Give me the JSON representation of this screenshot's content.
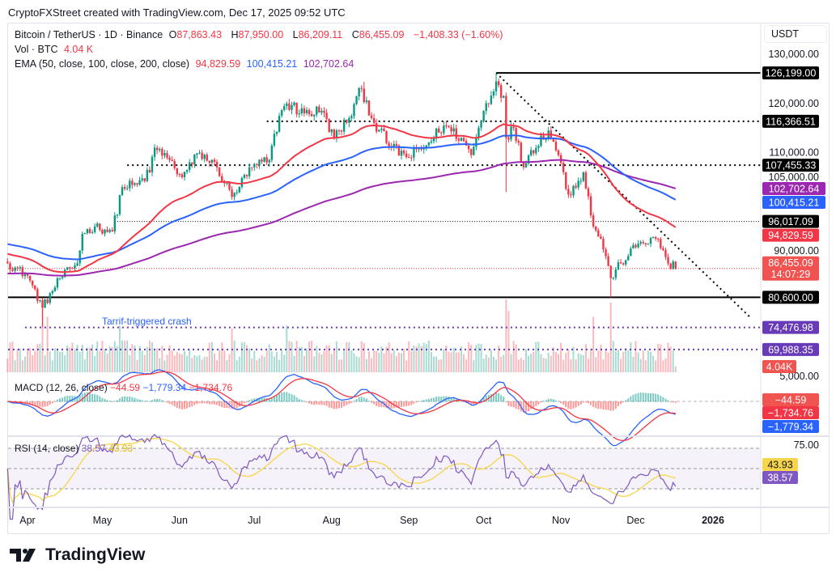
{
  "header": {
    "attribution": "CryptoFXStreet created with TradingView.com, Dec 17, 2025 09:52 UTC"
  },
  "legend": {
    "symbol": "Bitcoin / TetherUS · 1D · Binance",
    "o_label": "O",
    "open": "87,863.43",
    "h_label": "H",
    "high": "87,950.00",
    "l_label": "L",
    "low": "86,209.11",
    "c_label": "C",
    "close": "86,455.09",
    "change": "−1,408.33 (−1.60%)",
    "vol_label": "Vol · BTC",
    "vol": "4.04 K",
    "ema_label": "EMA (50, close, 100, close, 200, close)",
    "ema50": "94,829.59",
    "ema100": "100,415.21",
    "ema200": "102,702.64"
  },
  "currency": "USDT",
  "annotation": "Tarrif-triggered crash",
  "macd": {
    "label": "MACD (12, 26, close)",
    "hist": "−44.59",
    "macd": "−1,779.34",
    "signal": "−1,734.76"
  },
  "rsi": {
    "label": "RSI (14, close)",
    "rsi": "38.57",
    "ma": "43.93"
  },
  "brand": "TradingView",
  "colors": {
    "up": "#089981",
    "down": "#f23645",
    "ema50": "#f23645",
    "ema100": "#2962ff",
    "ema200": "#9c27b0",
    "rsi": "#7e57c2",
    "rsi_ma": "#f7d54a",
    "level": "#673ab7"
  },
  "chart_data": {
    "type": "candlestick",
    "symbol": "BTCUSDT",
    "interval": "1D",
    "ylim": [
      65000,
      132000
    ],
    "price_ticks": [
      "130,000.00",
      "120,000.00",
      "110,000.00",
      "105,000.00",
      "90,000.00"
    ],
    "price_tick_values": [
      130000,
      120000,
      110000,
      105000,
      90000
    ],
    "volume_tick": "5,000.00",
    "rsi_tick": "75.00",
    "x_labels": [
      {
        "label": "Apr",
        "date": "2025-04-01"
      },
      {
        "label": "May",
        "date": "2025-05-01"
      },
      {
        "label": "Jun",
        "date": "2025-06-01"
      },
      {
        "label": "Jul",
        "date": "2025-07-01"
      },
      {
        "label": "Aug",
        "date": "2025-08-01"
      },
      {
        "label": "Sep",
        "date": "2025-09-01"
      },
      {
        "label": "Oct",
        "date": "2025-10-01"
      },
      {
        "label": "Nov",
        "date": "2025-11-01"
      },
      {
        "label": "Dec",
        "date": "2025-12-01"
      },
      {
        "label": "2026",
        "date": "2026-01-01"
      }
    ],
    "close_keypoints": [
      [
        "2025-03-24",
        87500
      ],
      [
        "2025-04-01",
        85000
      ],
      [
        "2025-04-07",
        78500
      ],
      [
        "2025-04-14",
        84500
      ],
      [
        "2025-04-21",
        87500
      ],
      [
        "2025-04-23",
        93500
      ],
      [
        "2025-04-28",
        95000
      ],
      [
        "2025-05-05",
        94000
      ],
      [
        "2025-05-09",
        103000
      ],
      [
        "2025-05-15",
        103500
      ],
      [
        "2025-05-20",
        106000
      ],
      [
        "2025-05-22",
        111000
      ],
      [
        "2025-05-27",
        109000
      ],
      [
        "2025-06-02",
        105000
      ],
      [
        "2025-06-09",
        110000
      ],
      [
        "2025-06-16",
        107000
      ],
      [
        "2025-06-22",
        101000
      ],
      [
        "2025-06-30",
        107000
      ],
      [
        "2025-07-07",
        108500
      ],
      [
        "2025-07-11",
        117500
      ],
      [
        "2025-07-14",
        120000
      ],
      [
        "2025-07-21",
        118000
      ],
      [
        "2025-07-28",
        118500
      ],
      [
        "2025-08-02",
        113000
      ],
      [
        "2025-08-08",
        117000
      ],
      [
        "2025-08-13",
        123000
      ],
      [
        "2025-08-18",
        116000
      ],
      [
        "2025-08-25",
        111000
      ],
      [
        "2025-09-01",
        109000
      ],
      [
        "2025-09-08",
        111500
      ],
      [
        "2025-09-15",
        115500
      ],
      [
        "2025-09-22",
        113000
      ],
      [
        "2025-09-26",
        109500
      ],
      [
        "2025-10-01",
        118500
      ],
      [
        "2025-10-06",
        124500
      ],
      [
        "2025-10-09",
        121500
      ],
      [
        "2025-10-10",
        113000
      ],
      [
        "2025-10-13",
        115000
      ],
      [
        "2025-10-17",
        107000
      ],
      [
        "2025-10-20",
        110500
      ],
      [
        "2025-10-27",
        114500
      ],
      [
        "2025-10-31",
        109500
      ],
      [
        "2025-11-04",
        101500
      ],
      [
        "2025-11-10",
        106000
      ],
      [
        "2025-11-14",
        95000
      ],
      [
        "2025-11-17",
        92500
      ],
      [
        "2025-11-21",
        84500
      ],
      [
        "2025-11-25",
        87500
      ],
      [
        "2025-12-02",
        91500
      ],
      [
        "2025-12-09",
        92500
      ],
      [
        "2025-12-12",
        90200
      ],
      [
        "2025-12-15",
        86400
      ],
      [
        "2025-12-16",
        87863
      ],
      [
        "2025-12-17",
        86455
      ]
    ],
    "wick_extremes": [
      {
        "date": "2025-04-07",
        "low": 74500
      },
      {
        "date": "2025-10-06",
        "high": 126199
      },
      {
        "date": "2025-10-10",
        "low": 102000
      },
      {
        "date": "2025-11-21",
        "low": 80600
      },
      {
        "date": "2025-08-14",
        "high": 124400
      }
    ],
    "last_candle": {
      "open": 87863.43,
      "high": 87950.0,
      "low": 86209.11,
      "close": 86455.09,
      "volume_k": 4.04
    },
    "volume_spikes_k": [
      [
        "2025-04-07",
        45
      ],
      [
        "2025-04-09",
        38
      ],
      [
        "2025-05-08",
        32
      ],
      [
        "2025-06-22",
        30
      ],
      [
        "2025-07-14",
        32
      ],
      [
        "2025-10-10",
        50
      ],
      [
        "2025-10-11",
        42
      ],
      [
        "2025-11-14",
        38
      ],
      [
        "2025-11-21",
        48
      ]
    ],
    "ema_start": {
      "ema50": 89500,
      "ema100": 91500,
      "ema200": 85400
    },
    "ema_last": {
      "ema50": 94829.59,
      "ema100": 100415.21,
      "ema200": 102702.64
    },
    "horizontal_levels": [
      {
        "price": 126199.0,
        "label": "126,199.00",
        "style": "solid",
        "color": "#000000",
        "from": "2025-10-06"
      },
      {
        "price": 116366.51,
        "label": "116,366.51",
        "style": "dotted",
        "color": "#000000",
        "from": "2025-07-06"
      },
      {
        "price": 107455.33,
        "label": "107,455.33",
        "style": "dotted",
        "color": "#000000",
        "from": "2025-05-11"
      },
      {
        "price": 96017.09,
        "label": "96,017.09",
        "style": "thin-dotted",
        "color": "#000000",
        "from": "2025-05-07"
      },
      {
        "price": 80600.0,
        "label": "80,600.00",
        "style": "solid",
        "color": "#000000",
        "from": "2025-03-24"
      },
      {
        "price": 74476.98,
        "label": "74,476.98",
        "style": "dotted",
        "color": "#673ab7",
        "from": "2025-03-31"
      },
      {
        "price": 69988.35,
        "label": "69,988.35",
        "style": "dotted",
        "color": "#673ab7",
        "from": "2025-03-24"
      }
    ],
    "trendline": {
      "from": [
        "2025-10-06",
        126199
      ],
      "to": [
        "2026-01-16",
        76500
      ],
      "style": "dotted"
    },
    "axis_badges": [
      {
        "value": 102702.64,
        "label": "102,702.64",
        "bg": "#9c27b0"
      },
      {
        "value": 100415.21,
        "label": "100,415.21",
        "bg": "#2962ff"
      },
      {
        "value": 94829.59,
        "label": "94,829.59",
        "bg": "#f23645"
      },
      {
        "value": 86455.09,
        "label": "86,455.09",
        "sub": "14:07:29",
        "bg": "#f05350"
      }
    ],
    "volume_badge": "4.04K",
    "macd_badges": [
      {
        "label": "−44.59",
        "bg": "#f05350"
      },
      {
        "label": "−1,734.76",
        "bg": "#f23645"
      },
      {
        "label": "−1,779.34",
        "bg": "#2962ff"
      }
    ],
    "rsi_badges": [
      {
        "label": "43.93",
        "bg": "#f7d54a",
        "fg": "#131722"
      },
      {
        "label": "38.57",
        "bg": "#7e57c2",
        "fg": "#ffffff"
      }
    ],
    "rsi_levels": [
      70,
      50,
      30
    ],
    "grid": false
  }
}
